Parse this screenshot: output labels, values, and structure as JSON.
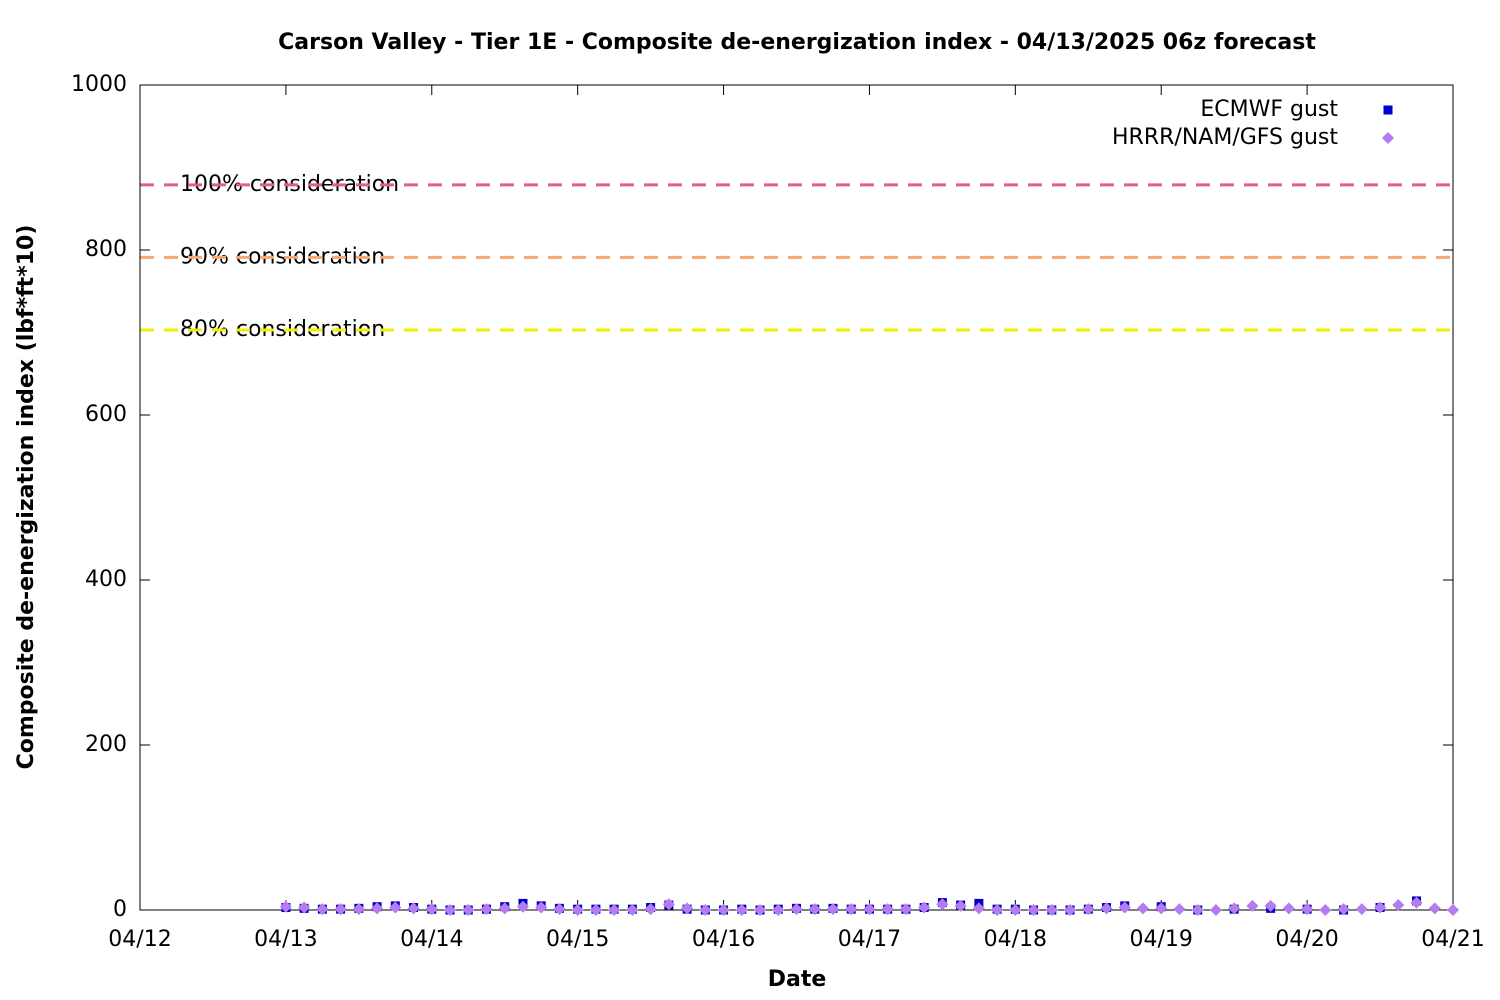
{
  "chart_data": {
    "type": "scatter",
    "title": "Carson Valley - Tier 1E - Composite de-energization index - 04/13/2025 06z forecast",
    "x_label": "Date",
    "y_label": "Composite de-energization index (lbf*ft*10)",
    "xlim": [
      12,
      21
    ],
    "xticks": [
      {
        "value": 12,
        "label": "04/12"
      },
      {
        "value": 13,
        "label": "04/13"
      },
      {
        "value": 14,
        "label": "04/14"
      },
      {
        "value": 15,
        "label": "04/15"
      },
      {
        "value": 16,
        "label": "04/16"
      },
      {
        "value": 17,
        "label": "04/17"
      },
      {
        "value": 18,
        "label": "04/18"
      },
      {
        "value": 19,
        "label": "04/19"
      },
      {
        "value": 20,
        "label": "04/20"
      },
      {
        "value": 21,
        "label": "04/21"
      }
    ],
    "ylim": [
      0,
      1000
    ],
    "yticks": [
      0,
      200,
      400,
      600,
      800,
      1000
    ],
    "legend": "top-right",
    "reference_lines": [
      {
        "label": "100% consideration",
        "value": 879,
        "color": "#e0607e"
      },
      {
        "label": "90% consideration",
        "value": 791,
        "color": "#f4a872"
      },
      {
        "label": "80% consideration",
        "value": 703,
        "color": "#f0f000"
      }
    ],
    "series": [
      {
        "name": "ECMWF gust",
        "color": "#0000c8",
        "marker": "square",
        "x": [
          13,
          13.125,
          13.25,
          13.375,
          13.5,
          13.625,
          13.75,
          13.875,
          14,
          14.125,
          14.25,
          14.375,
          14.5,
          14.625,
          14.75,
          14.875,
          15,
          15.125,
          15.25,
          15.375,
          15.5,
          15.625,
          15.75,
          15.875,
          16,
          16.125,
          16.25,
          16.375,
          16.5,
          16.625,
          16.75,
          16.875,
          17,
          17.125,
          17.25,
          17.375,
          17.5,
          17.625,
          17.75,
          17.875,
          18,
          18.125,
          18.25,
          18.375,
          18.5,
          18.625,
          18.75,
          19,
          19.25,
          19.5,
          19.75,
          20,
          20.25,
          20.5,
          20.75
        ],
        "values": [
          3,
          2,
          1,
          1,
          2,
          4,
          5,
          3,
          1,
          0,
          0,
          1,
          4,
          8,
          5,
          2,
          1,
          1,
          1,
          1,
          3,
          6,
          1,
          0,
          0,
          1,
          0,
          1,
          2,
          1,
          2,
          1,
          1,
          1,
          1,
          3,
          9,
          6,
          8,
          1,
          1,
          0,
          0,
          0,
          1,
          3,
          5,
          4,
          0,
          1,
          2,
          1,
          0,
          3,
          11
        ]
      },
      {
        "name": "HRRR/NAM/GFS gust",
        "color": "#b57cf0",
        "marker": "diamond",
        "x": [
          13,
          13.125,
          13.25,
          13.375,
          13.5,
          13.625,
          13.75,
          13.875,
          14,
          14.125,
          14.25,
          14.375,
          14.5,
          14.625,
          14.75,
          14.875,
          15,
          15.125,
          15.25,
          15.375,
          15.5,
          15.625,
          15.75,
          15.875,
          16,
          16.125,
          16.25,
          16.375,
          16.5,
          16.625,
          16.75,
          16.875,
          17,
          17.125,
          17.25,
          17.375,
          17.5,
          17.625,
          17.75,
          17.875,
          18,
          18.125,
          18.25,
          18.375,
          18.5,
          18.625,
          18.75,
          18.875,
          19,
          19.125,
          19.25,
          19.375,
          19.5,
          19.625,
          19.75,
          19.875,
          20,
          20.125,
          20.25,
          20.375,
          20.5,
          20.625,
          20.75,
          20.875,
          21
        ],
        "values": [
          4,
          3,
          1,
          1,
          1,
          2,
          3,
          2,
          1,
          0,
          0,
          1,
          2,
          4,
          3,
          1,
          0,
          0,
          0,
          0,
          1,
          7,
          2,
          0,
          0,
          0,
          0,
          0,
          1,
          1,
          1,
          1,
          1,
          1,
          1,
          3,
          7,
          5,
          2,
          0,
          0,
          0,
          0,
          0,
          1,
          2,
          3,
          2,
          2,
          1,
          0,
          0,
          2,
          5,
          5,
          2,
          1,
          0,
          1,
          1,
          3,
          6,
          9,
          2,
          0
        ]
      }
    ]
  }
}
